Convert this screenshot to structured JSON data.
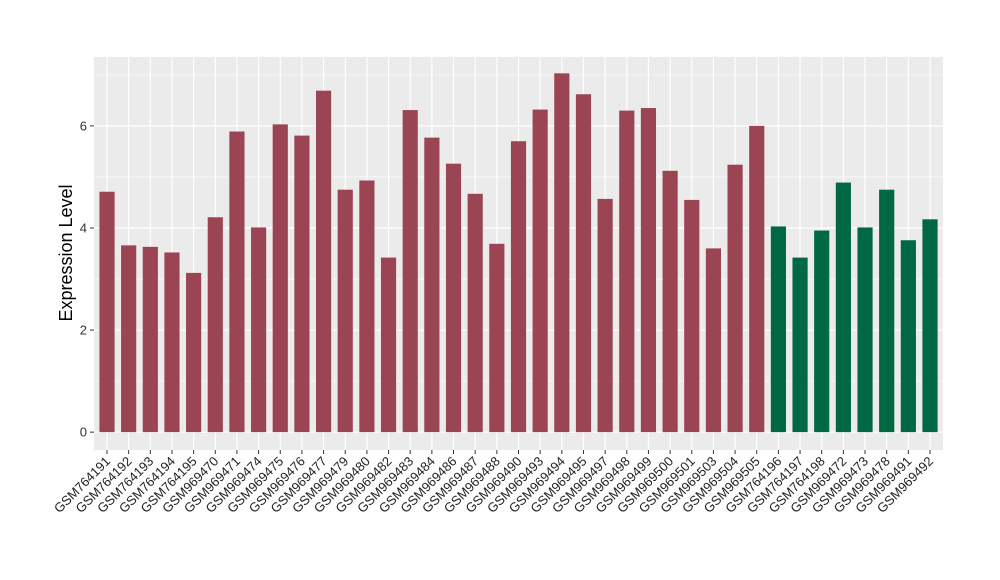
{
  "chart_data": {
    "type": "bar",
    "title": "",
    "xlabel": "",
    "ylabel": "Expression Level",
    "ylim": [
      -0.35,
      7.35
    ],
    "yticks": [
      0,
      2,
      4,
      6
    ],
    "grid": true,
    "legend": "none",
    "colors": {
      "group1": "#9b4453",
      "group2": "#006843",
      "panel": "#ebebeb",
      "grid": "#ffffff"
    },
    "categories": [
      "GSM764191",
      "GSM764192",
      "GSM764193",
      "GSM764194",
      "GSM764195",
      "GSM969470",
      "GSM969471",
      "GSM969474",
      "GSM969475",
      "GSM969476",
      "GSM969477",
      "GSM969479",
      "GSM969480",
      "GSM969482",
      "GSM969483",
      "GSM969484",
      "GSM969486",
      "GSM969487",
      "GSM969488",
      "GSM969490",
      "GSM969493",
      "GSM969494",
      "GSM969495",
      "GSM969497",
      "GSM969498",
      "GSM969499",
      "GSM969500",
      "GSM969501",
      "GSM969503",
      "GSM969504",
      "GSM969505",
      "GSM764196",
      "GSM764197",
      "GSM764198",
      "GSM969472",
      "GSM969473",
      "GSM969478",
      "GSM969491",
      "GSM969492"
    ],
    "values": [
      4.71,
      3.66,
      3.63,
      3.52,
      3.12,
      4.21,
      5.89,
      4.01,
      6.03,
      5.81,
      6.69,
      4.75,
      4.93,
      3.42,
      6.31,
      5.77,
      5.26,
      4.67,
      3.69,
      5.7,
      6.32,
      7.03,
      6.62,
      4.57,
      6.3,
      6.35,
      5.12,
      4.55,
      3.6,
      5.24,
      6.0,
      4.03,
      3.42,
      3.95,
      4.89,
      4.01,
      4.75,
      3.76,
      4.17
    ],
    "groups": [
      1,
      1,
      1,
      1,
      1,
      1,
      1,
      1,
      1,
      1,
      1,
      1,
      1,
      1,
      1,
      1,
      1,
      1,
      1,
      1,
      1,
      1,
      1,
      1,
      1,
      1,
      1,
      1,
      1,
      1,
      1,
      2,
      2,
      2,
      2,
      2,
      2,
      2,
      2
    ]
  }
}
